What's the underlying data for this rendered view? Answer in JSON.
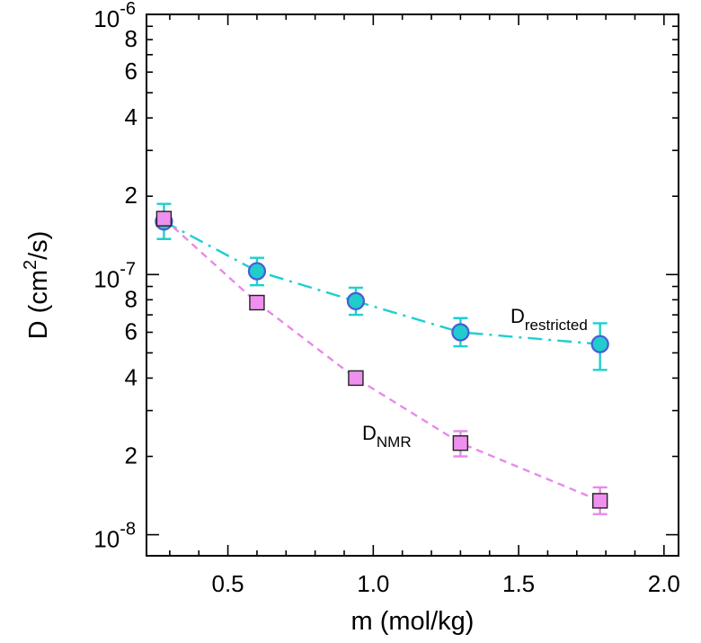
{
  "chart_data": {
    "type": "scatter",
    "title": "",
    "xlabel": "m (mol/kg)",
    "ylabel_main": "D (cm",
    "ylabel_sup": "2",
    "ylabel_end": "/s)",
    "xlim": [
      0.22,
      2.05
    ],
    "ylim": [
      8.3e-09,
      1e-06
    ],
    "yscale": "log",
    "grid": false,
    "x_ticks": [
      {
        "value": 0.5,
        "label": "0.5"
      },
      {
        "value": 1.0,
        "label": "1.0"
      },
      {
        "value": 1.5,
        "label": "1.5"
      },
      {
        "value": 2.0,
        "label": "2.0"
      }
    ],
    "y_major_ticks": [
      {
        "value": 1e-08,
        "base": "10",
        "exp": "-8"
      },
      {
        "value": 1e-07,
        "base": "10",
        "exp": "-7"
      },
      {
        "value": 1e-06,
        "base": "10",
        "exp": "-6"
      }
    ],
    "y_minor_labeled": [
      {
        "value": 2e-08,
        "label": "2"
      },
      {
        "value": 4e-08,
        "label": "4"
      },
      {
        "value": 6e-08,
        "label": "6"
      },
      {
        "value": 8e-08,
        "label": "8"
      },
      {
        "value": 2e-07,
        "label": "2"
      },
      {
        "value": 4e-07,
        "label": "4"
      },
      {
        "value": 6e-07,
        "label": "6"
      },
      {
        "value": 8e-07,
        "label": "8"
      }
    ],
    "series": [
      {
        "name_main": "D",
        "name_sub": "restricted",
        "marker": "circle",
        "line_style": "dash-dot",
        "line_color": "#1ecfcf",
        "marker_fill": "#20cccc",
        "marker_edge": "#4a5ad8",
        "points": [
          {
            "x": 0.28,
            "y": 1.6e-07,
            "err_lo": 1.37e-07,
            "err_hi": 1.87e-07
          },
          {
            "x": 0.6,
            "y": 1.03e-07,
            "err_lo": 9.1e-08,
            "err_hi": 1.16e-07
          },
          {
            "x": 0.94,
            "y": 7.9e-08,
            "err_lo": 7e-08,
            "err_hi": 8.9e-08
          },
          {
            "x": 1.3,
            "y": 6e-08,
            "err_lo": 5.3e-08,
            "err_hi": 6.8e-08
          },
          {
            "x": 1.78,
            "y": 5.4e-08,
            "err_lo": 4.3e-08,
            "err_hi": 6.5e-08
          }
        ]
      },
      {
        "name_main": "D",
        "name_sub": "NMR",
        "marker": "square",
        "line_style": "dashed",
        "line_color": "#e889e8",
        "marker_fill": "#ee90ee",
        "marker_edge": "#222222",
        "points": [
          {
            "x": 0.28,
            "y": 1.64e-07,
            "err_lo": 1.55e-07,
            "err_hi": 1.73e-07
          },
          {
            "x": 0.6,
            "y": 7.8e-08,
            "err_lo": 7.4e-08,
            "err_hi": 8.2e-08
          },
          {
            "x": 0.94,
            "y": 4e-08,
            "err_lo": 3.85e-08,
            "err_hi": 4.15e-08
          },
          {
            "x": 1.3,
            "y": 2.25e-08,
            "err_lo": 2e-08,
            "err_hi": 2.5e-08
          },
          {
            "x": 1.78,
            "y": 1.35e-08,
            "err_lo": 1.2e-08,
            "err_hi": 1.52e-08
          }
        ]
      }
    ]
  }
}
